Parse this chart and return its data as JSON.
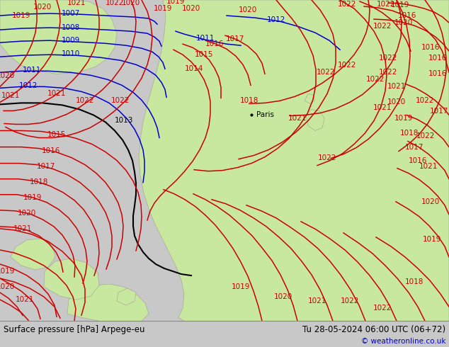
{
  "title_left": "Surface pressure [hPa] Arpege-eu",
  "title_right": "Tu 28-05-2024 06:00 UTC (06+72)",
  "copyright": "© weatheronline.co.uk",
  "bg_color": "#c8c8c8",
  "land_color": "#c8e8a0",
  "sea_color": "#c8c8c8",
  "isobar_color_blue": "#0000cc",
  "isobar_color_black": "#000000",
  "isobar_color_red": "#cc0000",
  "bottom_bar_color": "#ffffff",
  "bottom_text_color": "#000000",
  "copyright_color": "#0000cc",
  "figsize": [
    6.34,
    4.9
  ],
  "dpi": 100
}
